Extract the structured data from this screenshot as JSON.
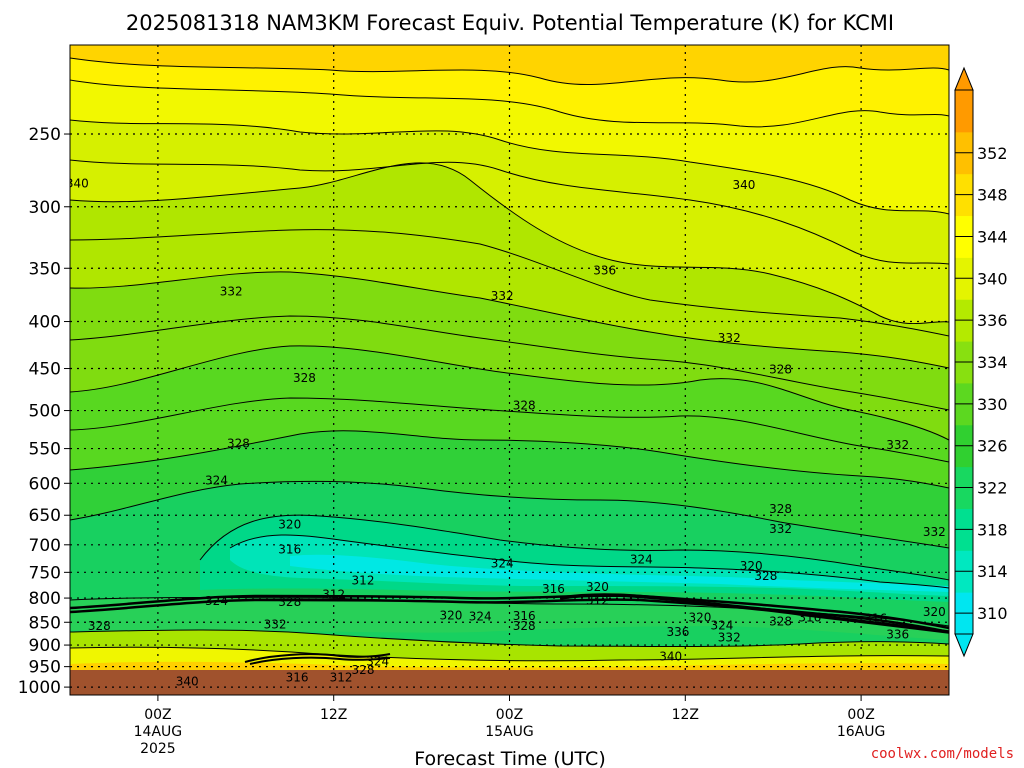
{
  "chart_data": {
    "type": "heatmap",
    "title": "2025081318 NAM3KM Forecast Equiv. Potential Temperature (K) for KCMI",
    "xlabel": "Forecast Time (UTC)",
    "ylabel": "",
    "y_ticks": [
      "250",
      "300",
      "350",
      "400",
      "450",
      "500",
      "550",
      "600",
      "650",
      "700",
      "750",
      "800",
      "850",
      "900",
      "950",
      "1000"
    ],
    "x_ticks": [
      {
        "label": "00Z",
        "date": "14AUG",
        "year": "2025",
        "hour": 6
      },
      {
        "label": "12Z",
        "date": "",
        "year": "",
        "hour": 18
      },
      {
        "label": "00Z",
        "date": "15AUG",
        "year": "",
        "hour": 30
      },
      {
        "label": "12Z",
        "date": "",
        "year": "",
        "hour": 42
      },
      {
        "label": "00Z",
        "date": "16AUG",
        "year": "",
        "hour": 54
      }
    ],
    "x_range_hours": [
      0,
      60
    ],
    "y_scale": "log",
    "y_range_hpa": [
      200,
      1020
    ],
    "grid": "dotted",
    "colorbar": {
      "ticks": [
        "310",
        "314",
        "318",
        "322",
        "326",
        "330",
        "334",
        "336",
        "340",
        "344",
        "348",
        "352"
      ],
      "colors": [
        "#00e6f0",
        "#00e8c0",
        "#00e090",
        "#18d860",
        "#30d030",
        "#5cd820",
        "#88e010",
        "#b4ea00",
        "#e4f400",
        "#ffff00",
        "#ffe000",
        "#ffc000",
        "#ff9a00"
      ],
      "min": 308,
      "max": 354
    },
    "contour_labels": [
      {
        "text": "340",
        "hour": 0.5,
        "p": 283
      },
      {
        "text": "340",
        "hour": 46,
        "p": 284
      },
      {
        "text": "336",
        "hour": 36.5,
        "p": 352
      },
      {
        "text": "332",
        "hour": 11,
        "p": 371
      },
      {
        "text": "332",
        "hour": 29.5,
        "p": 375
      },
      {
        "text": "332",
        "hour": 45,
        "p": 417
      },
      {
        "text": "328",
        "hour": 16,
        "p": 461
      },
      {
        "text": "328",
        "hour": 31,
        "p": 494
      },
      {
        "text": "328",
        "hour": 48.5,
        "p": 451
      },
      {
        "text": "328",
        "hour": 11.5,
        "p": 543
      },
      {
        "text": "332",
        "hour": 56.5,
        "p": 545
      },
      {
        "text": "324",
        "hour": 10,
        "p": 596
      },
      {
        "text": "320",
        "hour": 15,
        "p": 665
      },
      {
        "text": "316",
        "hour": 15,
        "p": 708
      },
      {
        "text": "328",
        "hour": 48.5,
        "p": 640
      },
      {
        "text": "332",
        "hour": 48.5,
        "p": 673
      },
      {
        "text": "332",
        "hour": 59,
        "p": 678
      },
      {
        "text": "324",
        "hour": 29.5,
        "p": 734
      },
      {
        "text": "324",
        "hour": 39,
        "p": 726
      },
      {
        "text": "320",
        "hour": 46.5,
        "p": 738
      },
      {
        "text": "328",
        "hour": 47.5,
        "p": 757
      },
      {
        "text": "312",
        "hour": 20,
        "p": 766
      },
      {
        "text": "312",
        "hour": 18,
        "p": 793
      },
      {
        "text": "316",
        "hour": 33,
        "p": 782
      },
      {
        "text": "320",
        "hour": 36,
        "p": 778
      },
      {
        "text": "312",
        "hour": 36,
        "p": 805
      },
      {
        "text": "324",
        "hour": 10,
        "p": 806
      },
      {
        "text": "328",
        "hour": 15,
        "p": 808
      },
      {
        "text": "328",
        "hour": 2,
        "p": 858
      },
      {
        "text": "332",
        "hour": 14,
        "p": 855
      },
      {
        "text": "320",
        "hour": 26,
        "p": 836
      },
      {
        "text": "324",
        "hour": 28,
        "p": 838
      },
      {
        "text": "316",
        "hour": 31,
        "p": 837
      },
      {
        "text": "328",
        "hour": 31,
        "p": 858
      },
      {
        "text": "320",
        "hour": 43,
        "p": 840
      },
      {
        "text": "324",
        "hour": 44.5,
        "p": 857
      },
      {
        "text": "328",
        "hour": 48.5,
        "p": 848
      },
      {
        "text": "316",
        "hour": 50.5,
        "p": 840
      },
      {
        "text": "316",
        "hour": 55,
        "p": 842
      },
      {
        "text": "320",
        "hour": 59,
        "p": 828
      },
      {
        "text": "336",
        "hour": 41.5,
        "p": 871
      },
      {
        "text": "332",
        "hour": 45,
        "p": 883
      },
      {
        "text": "336",
        "hour": 56.5,
        "p": 877
      },
      {
        "text": "324",
        "hour": 21,
        "p": 938
      },
      {
        "text": "328",
        "hour": 20,
        "p": 958
      },
      {
        "text": "340",
        "hour": 41,
        "p": 926
      },
      {
        "text": "316",
        "hour": 15.5,
        "p": 976
      },
      {
        "text": "312",
        "hour": 18.5,
        "p": 976
      },
      {
        "text": "340",
        "hour": 8,
        "p": 986
      }
    ]
  },
  "credit": "coolwx.com/models"
}
